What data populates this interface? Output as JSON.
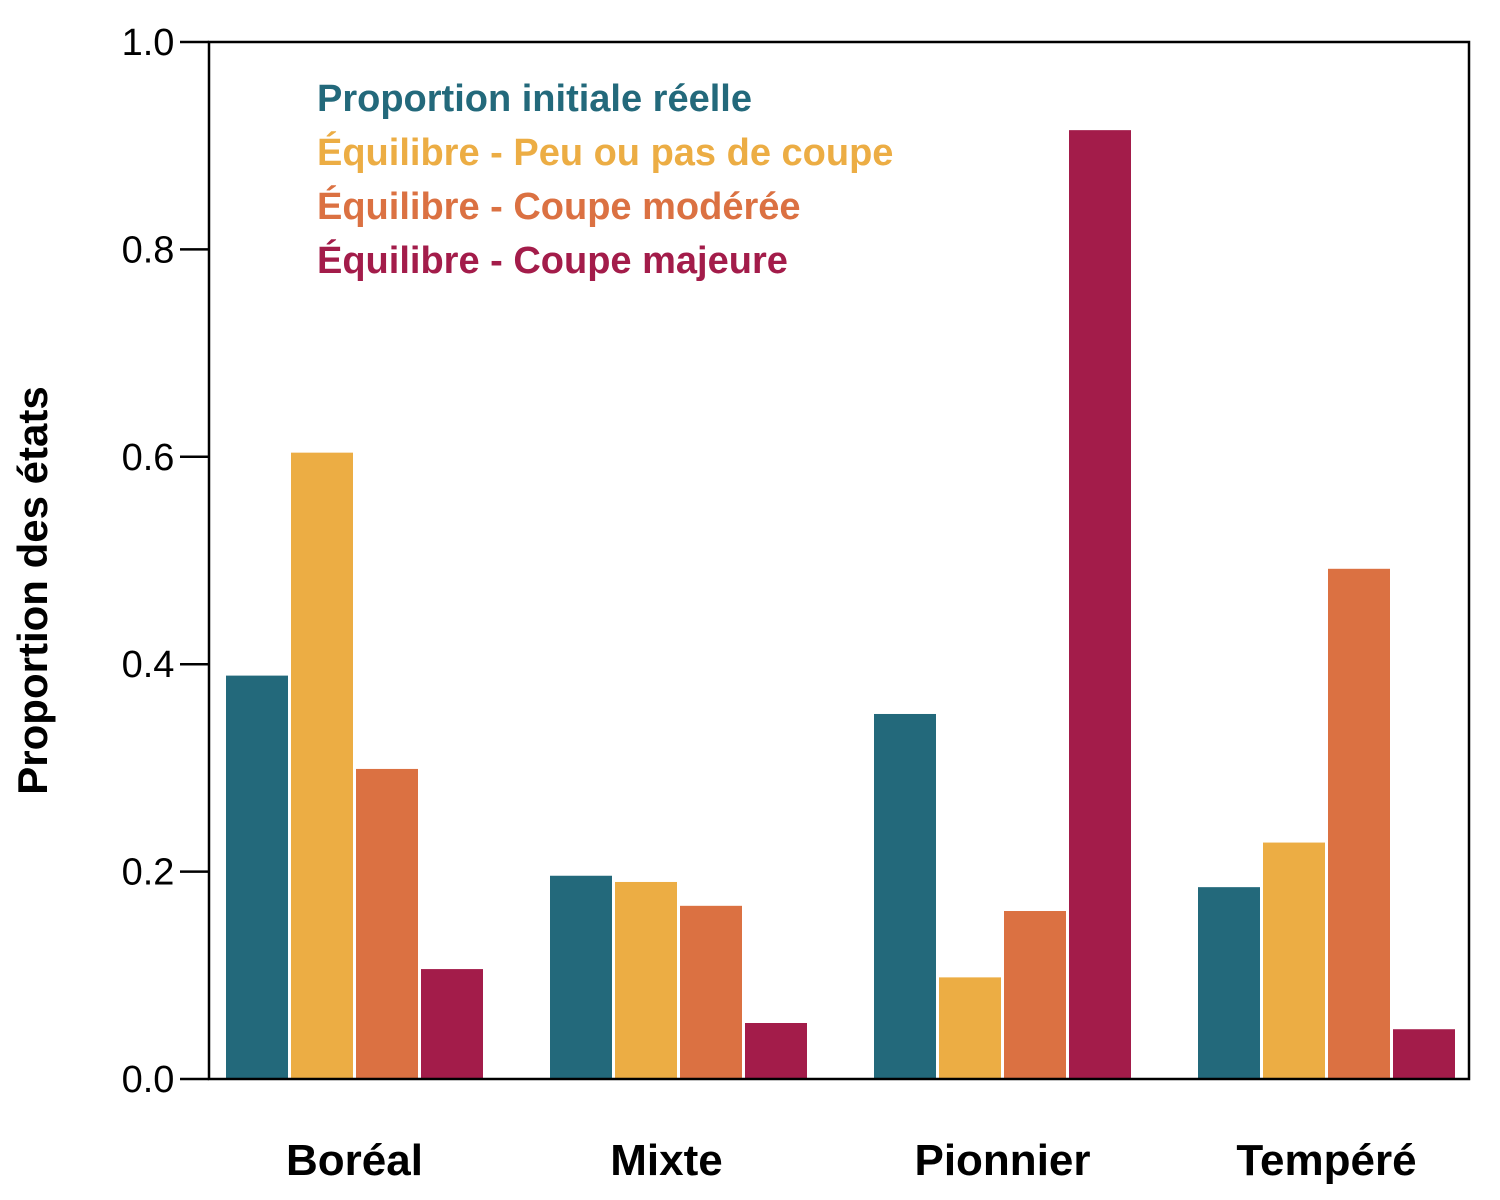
{
  "chart_data": {
    "type": "bar",
    "title": "",
    "xlabel": "",
    "ylabel": "Proportion des états",
    "ylim": [
      0,
      1.0
    ],
    "yticks": [
      "0.0",
      "0.2",
      "0.4",
      "0.6",
      "0.8",
      "1.0"
    ],
    "grid": false,
    "legend_position": "top-left",
    "categories": [
      "Boréal",
      "Mixte",
      "Pionnier",
      "Tempéré"
    ],
    "series": [
      {
        "name": "Proportion initiale réelle",
        "color": "#23697b",
        "values": [
          0.389,
          0.196,
          0.352,
          0.185
        ]
      },
      {
        "name": "Équilibre - Peu ou pas de coupe",
        "color": "#ecad44",
        "values": [
          0.604,
          0.19,
          0.098,
          0.228
        ]
      },
      {
        "name": "Équilibre - Coupe modérée",
        "color": "#db7142",
        "values": [
          0.299,
          0.167,
          0.162,
          0.492
        ]
      },
      {
        "name": "Équilibre - Coupe majeure",
        "color": "#a31c4a",
        "values": [
          0.106,
          0.054,
          0.915,
          0.048
        ]
      }
    ]
  }
}
